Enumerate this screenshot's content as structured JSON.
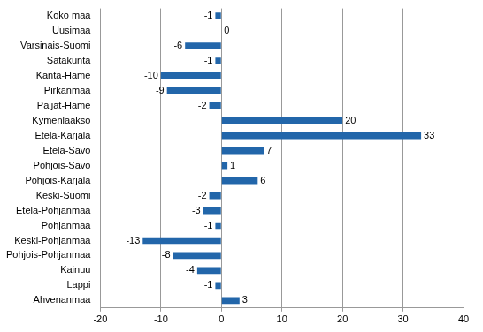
{
  "chart_data": {
    "type": "bar",
    "orientation": "horizontal",
    "categories": [
      "Koko maa",
      "Uusimaa",
      "Varsinais-Suomi",
      "Satakunta",
      "Kanta-Häme",
      "Pirkanmaa",
      "Päijät-Häme",
      "Kymenlaakso",
      "Etelä-Karjala",
      "Etelä-Savo",
      "Pohjois-Savo",
      "Pohjois-Karjala",
      "Keski-Suomi",
      "Etelä-Pohjanmaa",
      "Pohjanmaa",
      "Keski-Pohjanmaa",
      "Pohjois-Pohjanmaa",
      "Kainuu",
      "Lappi",
      "Ahvenanmaa"
    ],
    "values": [
      -1,
      0,
      -6,
      -1,
      -10,
      -9,
      -2,
      20,
      33,
      7,
      1,
      6,
      -2,
      -3,
      -1,
      -13,
      -8,
      -4,
      -1,
      3
    ],
    "color": "#2266aa",
    "xlim": [
      -20,
      40
    ],
    "xticks": [
      -20,
      -10,
      0,
      10,
      20,
      30,
      40
    ],
    "grid": true,
    "data_labels": true
  }
}
